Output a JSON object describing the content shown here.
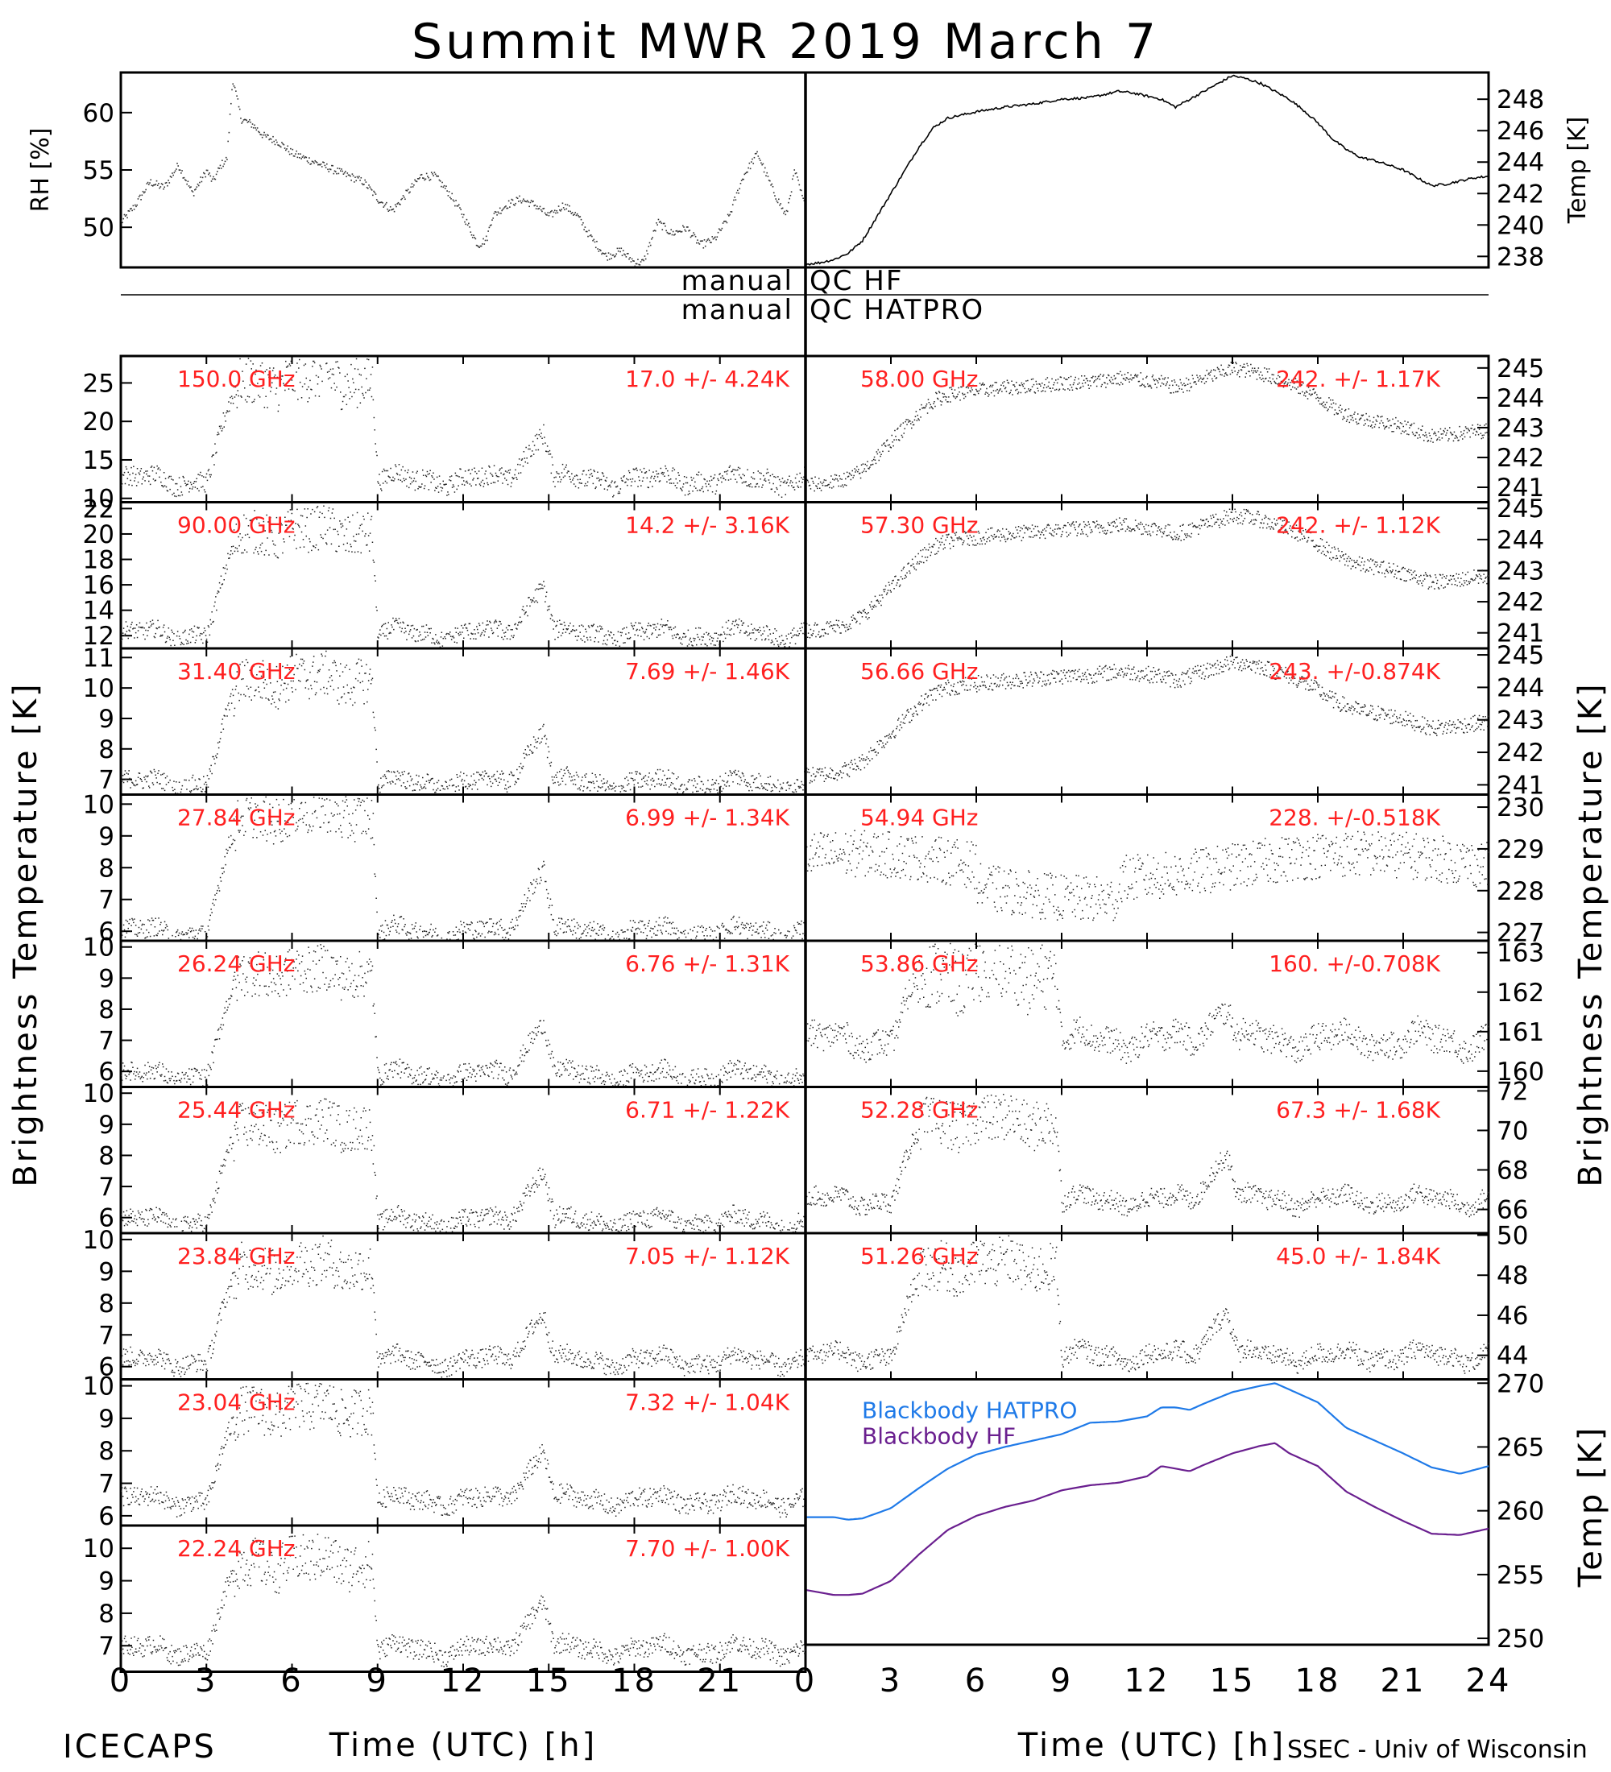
{
  "title": "Summit MWR 2019 March  7",
  "footer": {
    "left": "ICECAPS",
    "right": "SSEC - Univ of Wisconsin"
  },
  "qc": {
    "hf_label": "manual",
    "hf_value": "QC HF",
    "hatpro_label": "manual",
    "hatpro_value": "QC HATPRO"
  },
  "axis_titles": {
    "left": "Brightness Temperature [K]",
    "right": "Brightness Temperature [K]",
    "top_left": "RH [%]",
    "top_right": "Temp [K]",
    "bottom_right": "Temp [K]",
    "x": "Time (UTC) [h]"
  },
  "colors": {
    "label": "#ff2020",
    "hatpro": "#1f7ae8",
    "hf": "#6a1f8f",
    "data": "#000000"
  },
  "chart_data": [
    {
      "id": "rh",
      "type": "scatter",
      "ylabel": "RH [%]",
      "xlim": [
        0,
        24
      ],
      "ylim": [
        46.5,
        63.5
      ],
      "yticks": [
        50,
        55,
        60
      ],
      "x": [
        0,
        0.5,
        1,
        1.5,
        2,
        2.5,
        3,
        3.2,
        3.5,
        3.7,
        3.9,
        4.2,
        4.6,
        5,
        5.5,
        6,
        6.5,
        7,
        7.5,
        8,
        8.5,
        9,
        9.5,
        10,
        10.5,
        11,
        11.5,
        12,
        12.5,
        12.8,
        13,
        13.5,
        14,
        14.5,
        15,
        15.5,
        16,
        16.5,
        17,
        17.5,
        18,
        18.3,
        18.8,
        19.3,
        19.8,
        20.3,
        20.8,
        21.3,
        21.8,
        22.3,
        22.8,
        23.3,
        23.6,
        24
      ],
      "y": [
        50.5,
        52,
        54,
        53.5,
        55.5,
        53,
        55,
        54,
        55.5,
        56,
        63,
        59.5,
        59,
        58,
        57.5,
        56.5,
        56,
        55.5,
        55,
        54.5,
        54,
        52.5,
        51.5,
        53,
        54.5,
        54.5,
        53,
        51,
        48.5,
        49,
        51,
        52,
        52.5,
        52,
        51,
        52,
        51,
        49,
        47.5,
        48,
        47,
        47,
        50.5,
        49.5,
        50,
        48.5,
        49,
        51,
        54.5,
        56.5,
        53.5,
        51,
        55,
        51.5
      ]
    },
    {
      "id": "temp",
      "type": "line",
      "ylabel": "Temp [K]",
      "xlim": [
        0,
        24
      ],
      "ylim": [
        237.3,
        249.7
      ],
      "yticks": [
        238,
        240,
        242,
        244,
        246,
        248
      ],
      "x": [
        0,
        0.5,
        1,
        1.5,
        2,
        2.5,
        3,
        3.5,
        4,
        4.5,
        5,
        5.5,
        6,
        7,
        8,
        9,
        10,
        10.5,
        11,
        11.5,
        12,
        12.5,
        13,
        13.5,
        14,
        14.5,
        15,
        15.5,
        16,
        16.5,
        17,
        17.5,
        18,
        18.5,
        19,
        19.5,
        20,
        20.5,
        21,
        21.5,
        22,
        22.5,
        23,
        23.5,
        24
      ],
      "y": [
        237.5,
        237.6,
        237.8,
        238.2,
        239,
        240.5,
        242,
        243.5,
        245,
        246.2,
        246.8,
        247,
        247.2,
        247.5,
        247.7,
        248,
        248.1,
        248.3,
        248.5,
        248.4,
        248.2,
        248,
        247.5,
        248,
        248.5,
        249,
        249.5,
        249.3,
        249,
        248.5,
        248,
        247.3,
        246.5,
        245.5,
        244.8,
        244.3,
        244.1,
        243.8,
        243.5,
        243,
        242.5,
        242.6,
        242.8,
        243,
        243.1
      ]
    },
    {
      "id": "hf_channels",
      "type": "scatter",
      "xlabel": "Time (UTC) [h]",
      "xticks": [
        0,
        3,
        6,
        9,
        12,
        15,
        18,
        21
      ],
      "series": [
        {
          "name": "150.0 GHz",
          "stats": "17.0 +/-  4.24K",
          "ylim": [
            9.5,
            28.5
          ],
          "yticks": [
            10,
            15,
            20,
            25
          ],
          "base": 12.5,
          "cloud": 13,
          "bump": 6.5,
          "noise": 1.3
        },
        {
          "name": "90.00 GHz",
          "stats": "14.2 +/-  3.16K",
          "ylim": [
            11,
            22.5
          ],
          "yticks": [
            12,
            14,
            16,
            18,
            20,
            22
          ],
          "base": 12.2,
          "cloud": 8,
          "bump": 4,
          "noise": 0.7
        },
        {
          "name": "31.40 GHz",
          "stats": "7.69 +/- 1.46K",
          "ylim": [
            6.5,
            11.3
          ],
          "yticks": [
            7,
            8,
            9,
            10,
            11
          ],
          "base": 6.9,
          "cloud": 3.4,
          "bump": 1.8,
          "noise": 0.3
        },
        {
          "name": "27.84 GHz",
          "stats": "6.99 +/- 1.34K",
          "ylim": [
            5.7,
            10.3
          ],
          "yticks": [
            6,
            7,
            8,
            9,
            10
          ],
          "base": 6.0,
          "cloud": 3.7,
          "bump": 2.1,
          "noise": 0.3
        },
        {
          "name": "26.24 GHz",
          "stats": "6.76 +/- 1.31K",
          "ylim": [
            5.5,
            10.2
          ],
          "yticks": [
            6,
            7,
            8,
            9,
            10
          ],
          "base": 5.9,
          "cloud": 3.3,
          "bump": 1.8,
          "noise": 0.3
        },
        {
          "name": "25.44 GHz",
          "stats": "6.71 +/- 1.22K",
          "ylim": [
            5.5,
            10.2
          ],
          "yticks": [
            6,
            7,
            8,
            9,
            10
          ],
          "base": 5.9,
          "cloud": 3.1,
          "bump": 1.7,
          "noise": 0.3
        },
        {
          "name": "23.84 GHz",
          "stats": "7.05 +/- 1.12K",
          "ylim": [
            5.6,
            10.2
          ],
          "yticks": [
            6,
            7,
            8,
            9,
            10
          ],
          "base": 6.2,
          "cloud": 3.0,
          "bump": 1.6,
          "noise": 0.3
        },
        {
          "name": "23.04 GHz",
          "stats": "7.32 +/- 1.04K",
          "ylim": [
            5.7,
            10.2
          ],
          "yticks": [
            6,
            7,
            8,
            9,
            10
          ],
          "base": 6.5,
          "cloud": 2.8,
          "bump": 1.6,
          "noise": 0.3
        },
        {
          "name": "22.24 GHz",
          "stats": "7.70 +/- 1.00K",
          "ylim": [
            6.2,
            10.7
          ],
          "yticks": [
            7,
            8,
            9,
            10
          ],
          "base": 6.9,
          "cloud": 2.7,
          "bump": 1.6,
          "noise": 0.3
        }
      ]
    },
    {
      "id": "hatpro_channels",
      "type": "scatter",
      "xlabel": "Time (UTC) [h]",
      "xticks": [
        0,
        3,
        6,
        9,
        12,
        15,
        18,
        21,
        24
      ],
      "series": [
        {
          "name": "58.00 GHz",
          "stats": "242. +/- 1.17K",
          "ylim": [
            240.5,
            245.4
          ],
          "yticks": [
            241,
            242,
            243,
            244,
            245
          ],
          "shape": "temp",
          "noise": 0.25
        },
        {
          "name": "57.30 GHz",
          "stats": "242. +/- 1.12K",
          "ylim": [
            240.5,
            245.2
          ],
          "yticks": [
            241,
            242,
            243,
            244,
            245
          ],
          "shape": "temp",
          "noise": 0.25
        },
        {
          "name": "56.66 GHz",
          "stats": "243. +/-0.874K",
          "ylim": [
            240.7,
            245.2
          ],
          "yticks": [
            241,
            242,
            243,
            244,
            245
          ],
          "shape": "temp",
          "noise": 0.25
        },
        {
          "name": "54.94 GHz",
          "stats": "228. +/-0.518K",
          "ylim": [
            226.8,
            230.3
          ],
          "yticks": [
            227,
            228,
            229,
            230
          ],
          "shape": "flat",
          "base": 228.6,
          "noise": 0.45
        },
        {
          "name": "53.86 GHz",
          "stats": "160. +/-0.708K",
          "ylim": [
            159.6,
            163.3
          ],
          "yticks": [
            160,
            161,
            162,
            163
          ],
          "shape": "cloud",
          "base": 160.8,
          "cloud": 1.7,
          "bump": 0.9,
          "noise": 0.35
        },
        {
          "name": "52.28 GHz",
          "stats": "67.3 +/- 1.68K",
          "ylim": [
            64.8,
            72.2
          ],
          "yticks": [
            66,
            68,
            70,
            72
          ],
          "shape": "cloud",
          "base": 66.5,
          "cloud": 4,
          "bump": 2.5,
          "noise": 0.5
        },
        {
          "name": "51.26 GHz",
          "stats": "45.0 +/- 1.84K",
          "ylim": [
            42.8,
            50.1
          ],
          "yticks": [
            44,
            46,
            48,
            50
          ],
          "shape": "cloud",
          "base": 44.0,
          "cloud": 4.5,
          "bump": 2.4,
          "noise": 0.5
        }
      ]
    },
    {
      "id": "blackbody",
      "type": "line",
      "ylabel": "Temp [K]",
      "xlim": [
        0,
        24
      ],
      "ylim": [
        249.5,
        270.3
      ],
      "yticks": [
        250,
        255,
        260,
        265,
        270
      ],
      "xticks": [
        0,
        3,
        6,
        9,
        12,
        15,
        18,
        21,
        24
      ],
      "series": [
        {
          "name": "Blackbody HATPRO",
          "color": "#1f7ae8",
          "x": [
            0,
            1,
            1.5,
            2,
            3,
            4,
            5,
            6,
            7,
            8,
            9,
            10,
            11,
            12,
            12.5,
            13,
            13.5,
            14,
            15,
            16,
            16.5,
            17,
            18,
            19,
            20,
            21,
            22,
            23,
            24
          ],
          "y": [
            259.5,
            259.5,
            259.3,
            259.4,
            260.2,
            261.8,
            263.3,
            264.4,
            265,
            265.5,
            266,
            266.9,
            267,
            267.4,
            268.1,
            268.1,
            267.9,
            268.4,
            269.3,
            269.8,
            270,
            269.5,
            268.5,
            266.5,
            265.5,
            264.5,
            263.4,
            262.9,
            263.5
          ]
        },
        {
          "name": "Blackbody HF",
          "color": "#6a1f8f",
          "x": [
            0,
            1,
            1.5,
            2,
            3,
            4,
            5,
            6,
            7,
            8,
            9,
            10,
            11,
            12,
            12.5,
            13,
            13.5,
            14,
            15,
            16,
            16.5,
            17,
            18,
            19,
            20,
            21,
            22,
            23,
            24
          ],
          "y": [
            253.8,
            253.4,
            253.4,
            253.5,
            254.5,
            256.6,
            258.5,
            259.6,
            260.3,
            260.8,
            261.6,
            262,
            262.2,
            262.7,
            263.5,
            263.3,
            263.1,
            263.6,
            264.5,
            265.1,
            265.3,
            264.5,
            263.5,
            261.5,
            260.3,
            259.2,
            258.2,
            258.1,
            258.6
          ]
        }
      ]
    }
  ]
}
